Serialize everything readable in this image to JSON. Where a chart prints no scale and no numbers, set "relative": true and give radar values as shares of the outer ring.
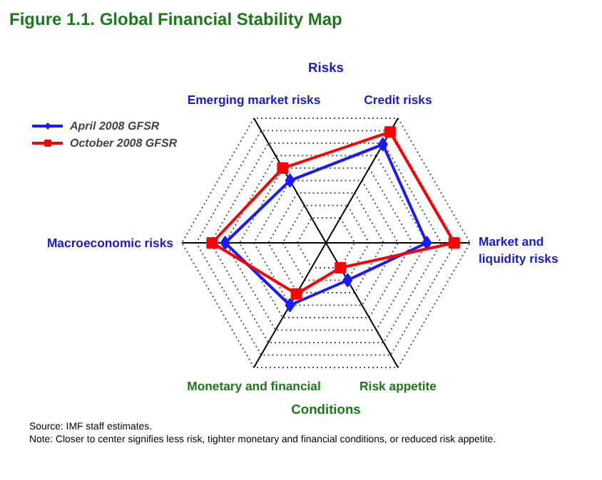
{
  "chart_data": {
    "type": "radar",
    "title": "Figure 1.1.  Global Financial Stability Map",
    "relative": true,
    "categories": [
      "Credit risks",
      "Market and\nliquidity risks",
      "Risk appetite",
      "Monetary and financial",
      "Macroeconomic risks",
      "Emerging market risks"
    ],
    "series": [
      {
        "name": "April 2008 GFSR",
        "color": "#1a1aff",
        "marker": "diamond",
        "values": [
          0.79,
          0.7,
          0.3,
          0.5,
          0.7,
          0.5
        ]
      },
      {
        "name": "October 2008 GFSR",
        "color": "#ff0000",
        "marker": "square",
        "values": [
          0.89,
          0.89,
          0.2,
          0.41,
          0.79,
          0.6
        ]
      }
    ],
    "legend": "top left",
    "grid": true,
    "annotations": [
      "Risks",
      "Conditions",
      "Source:  IMF staff estimates.",
      "Note:  Closer to center signifies less risk, tighter monetary and financial conditions, or reduced risk appetite."
    ]
  }
}
